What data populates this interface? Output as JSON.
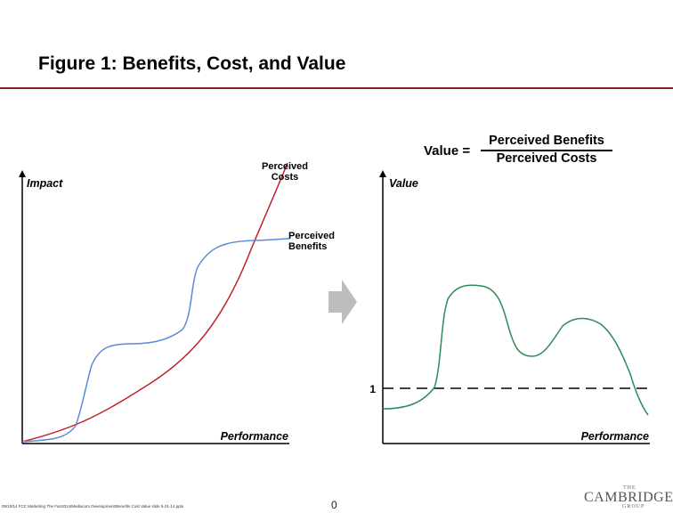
{
  "title": "Figure 1:  Benefits, Cost, and Value",
  "formula": {
    "lhs": "Value =",
    "numerator": "Perceived Benefits",
    "denominator": "Perceived Costs"
  },
  "left_chart": {
    "y_label": "Impact",
    "x_label": "Performance",
    "costs_label_line1": "Perceived",
    "costs_label_line2": "Costs",
    "benefits_label_line1": "Perceived",
    "benefits_label_line2": "Benefits",
    "costs_color": "#c0202a",
    "benefits_color": "#5b8bd6"
  },
  "right_chart": {
    "y_label": "Value",
    "x_label": "Performance",
    "reference_label": "1",
    "value_color": "#2e8b57"
  },
  "arrow_color": "#bdbdbd",
  "footer": {
    "note": "05/10/14     FCC Marketing The Fan2014/Mediacom Development/Benefits Cost Value slide 5-21-14.pptx",
    "page": "0"
  },
  "logo": {
    "the": "THE",
    "name": "CAMBRIDGE",
    "group": "GROUP"
  }
}
